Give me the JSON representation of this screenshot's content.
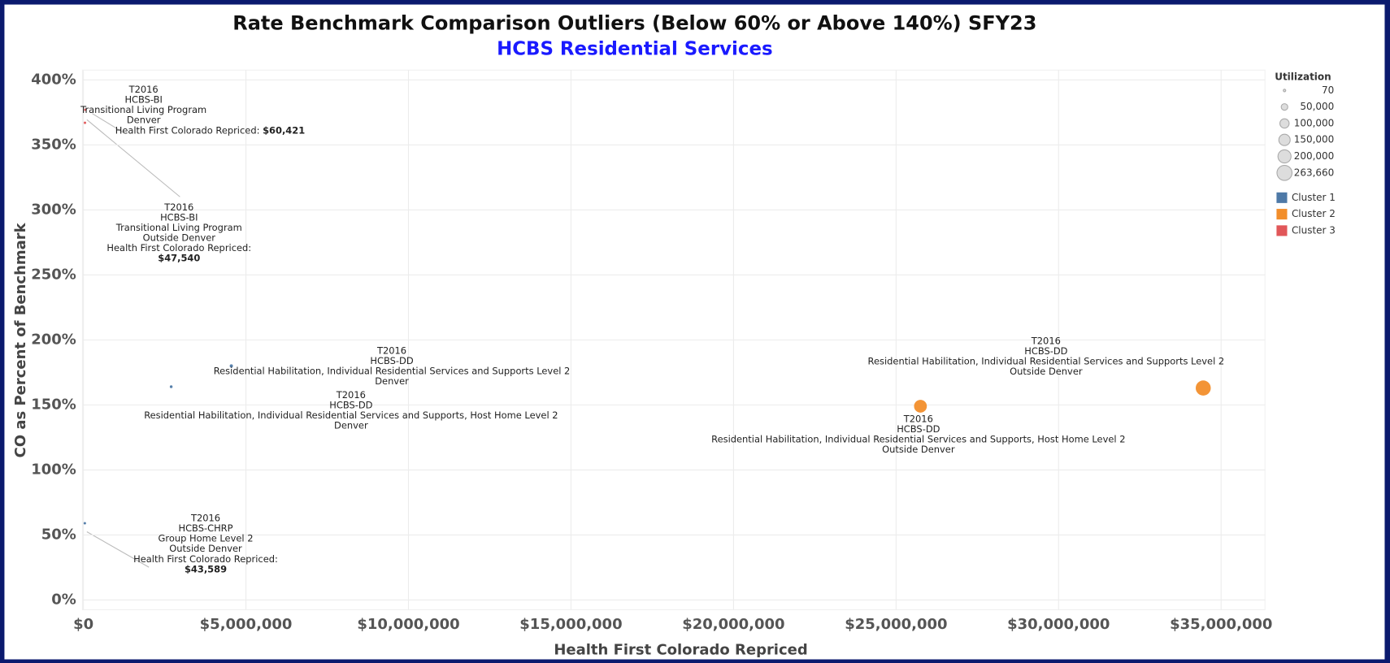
{
  "chart_data": {
    "type": "scatter",
    "title": "Rate Benchmark Comparison Outliers (Below 60% or Above 140%) SFY23",
    "subtitle": "HCBS Residential Services",
    "x_label": "Health First Colorado Repriced",
    "y_label": "CO as Percent of Benchmark",
    "xlim": [
      -30000,
      36350000
    ],
    "ylim": [
      -7.5,
      407.5
    ],
    "xticks": [
      {
        "value": 0,
        "label": "$0"
      },
      {
        "value": 5000000,
        "label": "$5,000,000"
      },
      {
        "value": 10000000,
        "label": "$10,000,000"
      },
      {
        "value": 15000000,
        "label": "$15,000,000"
      },
      {
        "value": 20000000,
        "label": "$20,000,000"
      },
      {
        "value": 25000000,
        "label": "$25,000,000"
      },
      {
        "value": 30000000,
        "label": "$30,000,000"
      },
      {
        "value": 35000000,
        "label": "$35,000,000"
      }
    ],
    "yticks": [
      {
        "value": 0,
        "label": "0%"
      },
      {
        "value": 50,
        "label": "50%"
      },
      {
        "value": 100,
        "label": "100%"
      },
      {
        "value": 150,
        "label": "150%"
      },
      {
        "value": 200,
        "label": "200%"
      },
      {
        "value": 250,
        "label": "250%"
      },
      {
        "value": 300,
        "label": "300%"
      },
      {
        "value": 350,
        "label": "350%"
      },
      {
        "value": 400,
        "label": "400%"
      }
    ],
    "grid": true,
    "size_legend_title": "Utilization",
    "size_legend": [
      {
        "value": 70,
        "label": "70"
      },
      {
        "value": 50000,
        "label": "50,000"
      },
      {
        "value": 100000,
        "label": "100,000"
      },
      {
        "value": 150000,
        "label": "150,000"
      },
      {
        "value": 200000,
        "label": "200,000"
      },
      {
        "value": 263660,
        "label": "263,660"
      }
    ],
    "legend_position": "right",
    "series": [
      {
        "name": "Cluster 1",
        "color": "#4e79a7",
        "x": [
          4550000,
          2700000,
          43589
        ],
        "values": [
          180,
          164,
          59
        ],
        "sizes": [
          12000,
          9000,
          70
        ]
      },
      {
        "name": "Cluster 2",
        "color": "#f28e2b",
        "x": [
          25750000,
          34450000
        ],
        "values": [
          149,
          163
        ],
        "sizes": [
          190000,
          263660
        ]
      },
      {
        "name": "Cluster 3",
        "color": "#e15759",
        "x": [
          60421,
          47540
        ],
        "values": [
          377,
          367
        ],
        "sizes": [
          300,
          250
        ]
      }
    ],
    "annotations": [
      {
        "lines": [
          "T2016",
          "HCBS-BI",
          "Transitional Living Program",
          "Denver",
          "Health First Colorado Repriced:"
        ],
        "amount": "$60,421"
      },
      {
        "lines": [
          "T2016",
          "HCBS-BI",
          "Transitional Living Program",
          "Outside Denver",
          "Health First Colorado Repriced:"
        ],
        "amount": "$47,540"
      },
      {
        "lines": [
          "T2016",
          "HCBS-DD",
          "Residential Habilitation, Individual Residential Services and Supports Level 2",
          "Denver"
        ]
      },
      {
        "lines": [
          "T2016",
          "HCBS-DD",
          "Residential Habilitation, Individual Residential Services and Supports, Host Home Level 2",
          "Denver"
        ]
      },
      {
        "lines": [
          "T2016",
          "HCBS-DD",
          "Residential Habilitation, Individual Residential Services and Supports Level 2",
          "Outside Denver"
        ]
      },
      {
        "lines": [
          "T2016",
          "HCBS-DD",
          "Residential Habilitation, Individual Residential Services and Supports, Host Home Level 2",
          "Outside Denver"
        ]
      },
      {
        "lines": [
          "T2016",
          "HCBS-CHRP",
          "Group Home Level 2",
          "Outside Denver",
          "Health First Colorado Repriced:"
        ],
        "amount": "$43,589"
      }
    ]
  }
}
